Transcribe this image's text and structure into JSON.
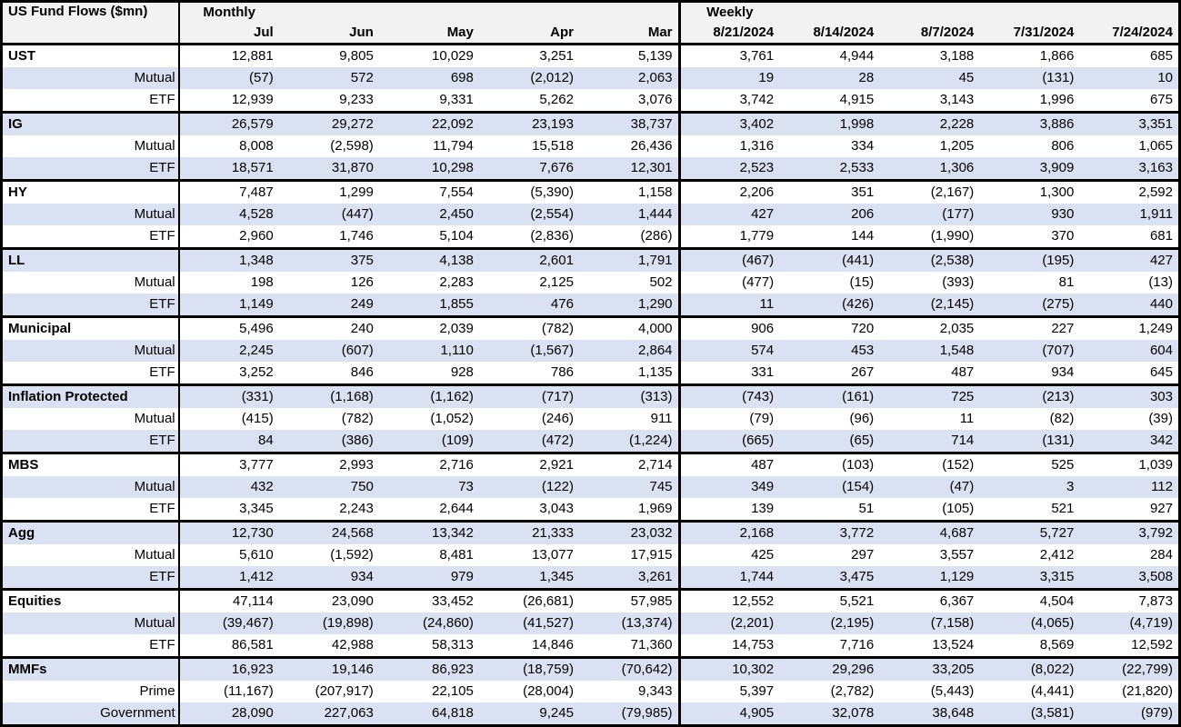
{
  "title": "US Fund Flows ($mn)",
  "colors": {
    "band": "#d9e1f2",
    "header_bg": "#f2f2f2",
    "border": "#000000"
  },
  "sections": [
    {
      "label": "Monthly",
      "columns": [
        "Jul",
        "Jun",
        "May",
        "Apr",
        "Mar"
      ]
    },
    {
      "label": "Weekly",
      "columns": [
        "8/21/2024",
        "8/14/2024",
        "8/7/2024",
        "7/31/2024",
        "7/24/2024"
      ]
    }
  ],
  "groups": [
    {
      "name": "UST",
      "rows": [
        {
          "label": "UST",
          "type": "group",
          "values": [
            "12,881",
            "9,805",
            "10,029",
            "3,251",
            "5,139",
            "3,761",
            "4,944",
            "3,188",
            "1,866",
            "685"
          ]
        },
        {
          "label": "Mutual",
          "type": "sub",
          "values": [
            "(57)",
            "572",
            "698",
            "(2,012)",
            "2,063",
            "19",
            "28",
            "45",
            "(131)",
            "10"
          ]
        },
        {
          "label": "ETF",
          "type": "sub",
          "values": [
            "12,939",
            "9,233",
            "9,331",
            "5,262",
            "3,076",
            "3,742",
            "4,915",
            "3,143",
            "1,996",
            "675"
          ]
        }
      ]
    },
    {
      "name": "IG",
      "rows": [
        {
          "label": "IG",
          "type": "group",
          "values": [
            "26,579",
            "29,272",
            "22,092",
            "23,193",
            "38,737",
            "3,402",
            "1,998",
            "2,228",
            "3,886",
            "3,351"
          ]
        },
        {
          "label": "Mutual",
          "type": "sub",
          "values": [
            "8,008",
            "(2,598)",
            "11,794",
            "15,518",
            "26,436",
            "1,316",
            "334",
            "1,205",
            "806",
            "1,065"
          ]
        },
        {
          "label": "ETF",
          "type": "sub",
          "values": [
            "18,571",
            "31,870",
            "10,298",
            "7,676",
            "12,301",
            "2,523",
            "2,533",
            "1,306",
            "3,909",
            "3,163"
          ]
        }
      ]
    },
    {
      "name": "HY",
      "rows": [
        {
          "label": "HY",
          "type": "group",
          "values": [
            "7,487",
            "1,299",
            "7,554",
            "(5,390)",
            "1,158",
            "2,206",
            "351",
            "(2,167)",
            "1,300",
            "2,592"
          ]
        },
        {
          "label": "Mutual",
          "type": "sub",
          "values": [
            "4,528",
            "(447)",
            "2,450",
            "(2,554)",
            "1,444",
            "427",
            "206",
            "(177)",
            "930",
            "1,911"
          ]
        },
        {
          "label": "ETF",
          "type": "sub",
          "values": [
            "2,960",
            "1,746",
            "5,104",
            "(2,836)",
            "(286)",
            "1,779",
            "144",
            "(1,990)",
            "370",
            "681"
          ]
        }
      ]
    },
    {
      "name": "LL",
      "rows": [
        {
          "label": "LL",
          "type": "group",
          "values": [
            "1,348",
            "375",
            "4,138",
            "2,601",
            "1,791",
            "(467)",
            "(441)",
            "(2,538)",
            "(195)",
            "427"
          ]
        },
        {
          "label": "Mutual",
          "type": "sub",
          "values": [
            "198",
            "126",
            "2,283",
            "2,125",
            "502",
            "(477)",
            "(15)",
            "(393)",
            "81",
            "(13)"
          ]
        },
        {
          "label": "ETF",
          "type": "sub",
          "values": [
            "1,149",
            "249",
            "1,855",
            "476",
            "1,290",
            "11",
            "(426)",
            "(2,145)",
            "(275)",
            "440"
          ]
        }
      ]
    },
    {
      "name": "Municipal",
      "rows": [
        {
          "label": "Municipal",
          "type": "group",
          "values": [
            "5,496",
            "240",
            "2,039",
            "(782)",
            "4,000",
            "906",
            "720",
            "2,035",
            "227",
            "1,249"
          ]
        },
        {
          "label": "Mutual",
          "type": "sub",
          "values": [
            "2,245",
            "(607)",
            "1,110",
            "(1,567)",
            "2,864",
            "574",
            "453",
            "1,548",
            "(707)",
            "604"
          ]
        },
        {
          "label": "ETF",
          "type": "sub",
          "values": [
            "3,252",
            "846",
            "928",
            "786",
            "1,135",
            "331",
            "267",
            "487",
            "934",
            "645"
          ]
        }
      ]
    },
    {
      "name": "Inflation Protected",
      "rows": [
        {
          "label": "Inflation Protected",
          "type": "group",
          "values": [
            "(331)",
            "(1,168)",
            "(1,162)",
            "(717)",
            "(313)",
            "(743)",
            "(161)",
            "725",
            "(213)",
            "303"
          ]
        },
        {
          "label": "Mutual",
          "type": "sub",
          "values": [
            "(415)",
            "(782)",
            "(1,052)",
            "(246)",
            "911",
            "(79)",
            "(96)",
            "11",
            "(82)",
            "(39)"
          ]
        },
        {
          "label": "ETF",
          "type": "sub",
          "values": [
            "84",
            "(386)",
            "(109)",
            "(472)",
            "(1,224)",
            "(665)",
            "(65)",
            "714",
            "(131)",
            "342"
          ]
        }
      ]
    },
    {
      "name": "MBS",
      "rows": [
        {
          "label": "MBS",
          "type": "group",
          "values": [
            "3,777",
            "2,993",
            "2,716",
            "2,921",
            "2,714",
            "487",
            "(103)",
            "(152)",
            "525",
            "1,039"
          ]
        },
        {
          "label": "Mutual",
          "type": "sub",
          "values": [
            "432",
            "750",
            "73",
            "(122)",
            "745",
            "349",
            "(154)",
            "(47)",
            "3",
            "112"
          ]
        },
        {
          "label": "ETF",
          "type": "sub",
          "values": [
            "3,345",
            "2,243",
            "2,644",
            "3,043",
            "1,969",
            "139",
            "51",
            "(105)",
            "521",
            "927"
          ]
        }
      ]
    },
    {
      "name": "Agg",
      "rows": [
        {
          "label": "Agg",
          "type": "group",
          "values": [
            "12,730",
            "24,568",
            "13,342",
            "21,333",
            "23,032",
            "2,168",
            "3,772",
            "4,687",
            "5,727",
            "3,792"
          ]
        },
        {
          "label": "Mutual",
          "type": "sub",
          "values": [
            "5,610",
            "(1,592)",
            "8,481",
            "13,077",
            "17,915",
            "425",
            "297",
            "3,557",
            "2,412",
            "284"
          ]
        },
        {
          "label": "ETF",
          "type": "sub",
          "values": [
            "1,412",
            "934",
            "979",
            "1,345",
            "3,261",
            "1,744",
            "3,475",
            "1,129",
            "3,315",
            "3,508"
          ]
        }
      ]
    },
    {
      "name": "Equities",
      "rows": [
        {
          "label": "Equities",
          "type": "group",
          "values": [
            "47,114",
            "23,090",
            "33,452",
            "(26,681)",
            "57,985",
            "12,552",
            "5,521",
            "6,367",
            "4,504",
            "7,873"
          ]
        },
        {
          "label": "Mutual",
          "type": "sub",
          "values": [
            "(39,467)",
            "(19,898)",
            "(24,860)",
            "(41,527)",
            "(13,374)",
            "(2,201)",
            "(2,195)",
            "(7,158)",
            "(4,065)",
            "(4,719)"
          ]
        },
        {
          "label": "ETF",
          "type": "sub",
          "values": [
            "86,581",
            "42,988",
            "58,313",
            "14,846",
            "71,360",
            "14,753",
            "7,716",
            "13,524",
            "8,569",
            "12,592"
          ]
        }
      ]
    },
    {
      "name": "MMFs",
      "rows": [
        {
          "label": "MMFs",
          "type": "group",
          "values": [
            "16,923",
            "19,146",
            "86,923",
            "(18,759)",
            "(70,642)",
            "10,302",
            "29,296",
            "33,205",
            "(8,022)",
            "(22,799)"
          ]
        },
        {
          "label": "Prime",
          "type": "sub",
          "values": [
            "(11,167)",
            "(207,917)",
            "22,105",
            "(28,004)",
            "9,343",
            "5,397",
            "(2,782)",
            "(5,443)",
            "(4,441)",
            "(21,820)"
          ]
        },
        {
          "label": "Government",
          "type": "sub",
          "values": [
            "28,090",
            "227,063",
            "64,818",
            "9,245",
            "(79,985)",
            "4,905",
            "32,078",
            "38,648",
            "(3,581)",
            "(979)"
          ]
        }
      ]
    }
  ]
}
